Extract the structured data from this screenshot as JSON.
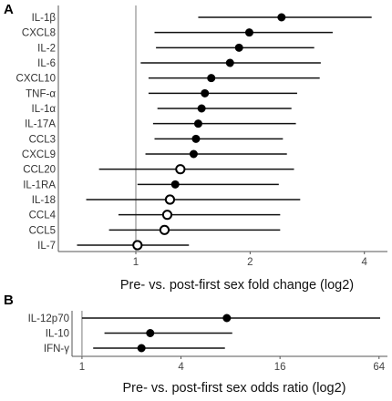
{
  "chart_data": [
    {
      "panel": "A",
      "type": "scatter",
      "style": "forest-plot",
      "xlabel": "Pre- vs. post-first sex fold change (log2)",
      "x_scale": "log2",
      "xlim": [
        0.625,
        4.6
      ],
      "x_ticks": [
        1,
        2,
        4
      ],
      "reference_line": 1,
      "categories": [
        "IL-1β",
        "CXCL8",
        "IL-2",
        "IL-6",
        "CXCL10",
        "TNF-α",
        "IL-1α",
        "IL-17A",
        "CCL3",
        "CXCL9",
        "CCL20",
        "IL-1RA",
        "IL-18",
        "CCL4",
        "CCL5",
        "IL-7"
      ],
      "estimate": [
        2.42,
        1.99,
        1.87,
        1.77,
        1.58,
        1.52,
        1.49,
        1.46,
        1.44,
        1.42,
        1.31,
        1.27,
        1.23,
        1.21,
        1.19,
        1.01
      ],
      "ci_low": [
        1.46,
        1.12,
        1.13,
        1.03,
        1.08,
        1.08,
        1.14,
        1.11,
        1.12,
        1.06,
        0.8,
        1.01,
        0.74,
        0.9,
        0.85,
        0.7
      ],
      "ci_high": [
        4.18,
        3.3,
        2.95,
        3.07,
        3.05,
        2.66,
        2.57,
        2.64,
        2.44,
        2.5,
        2.61,
        2.38,
        2.71,
        2.4,
        2.4,
        1.38
      ],
      "filled": [
        true,
        true,
        true,
        true,
        true,
        true,
        true,
        true,
        true,
        true,
        false,
        true,
        false,
        false,
        false,
        false
      ],
      "grid": false
    },
    {
      "panel": "B",
      "type": "scatter",
      "style": "forest-plot",
      "xlabel": "Pre- vs. post-first sex odds ratio (log2)",
      "x_scale": "log2",
      "xlim": [
        0.87,
        72
      ],
      "x_ticks": [
        1,
        4,
        16,
        64
      ],
      "reference_line": 1,
      "categories": [
        "IL-12p70",
        "IL-10",
        "IFN-γ"
      ],
      "estimate": [
        7.6,
        2.6,
        2.3
      ],
      "ci_low": [
        1.0,
        1.37,
        1.17
      ],
      "ci_high": [
        65,
        8.2,
        7.4
      ],
      "filled": [
        true,
        true,
        true
      ],
      "grid": false
    }
  ]
}
